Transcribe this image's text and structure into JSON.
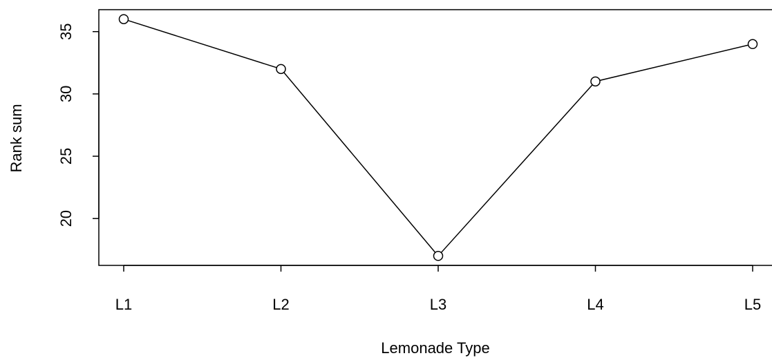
{
  "chart_data": {
    "type": "line",
    "x_label": "Lemonade Type",
    "y_label": "Rank sum",
    "categories": [
      "L1",
      "L2",
      "L3",
      "L4",
      "L5"
    ],
    "values": [
      36,
      32,
      17,
      31,
      34
    ],
    "color": "#000000",
    "ylim": [
      16.24,
      36.76
    ],
    "yticks": [
      20,
      25,
      30,
      35
    ],
    "markers": true,
    "grid": false
  }
}
